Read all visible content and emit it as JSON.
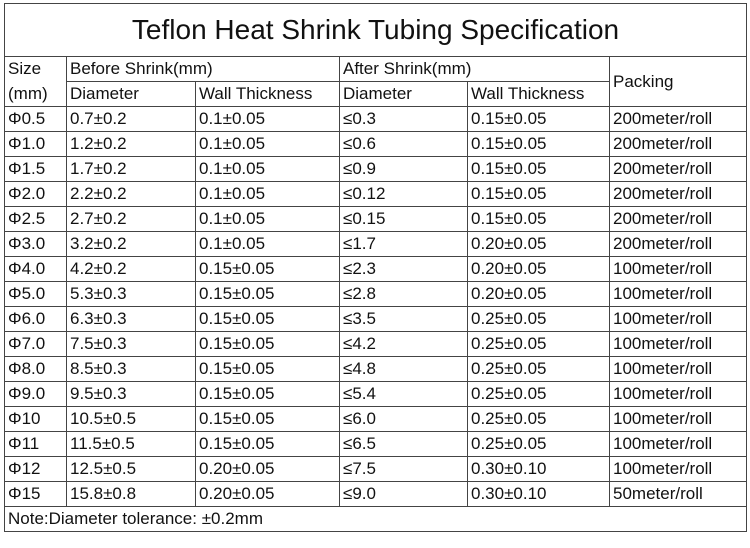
{
  "table": {
    "title": "Teflon Heat Shrink Tubing Specification",
    "header": {
      "size_line1": "Size",
      "size_line2": "(mm)",
      "before": "Before Shrink(mm)",
      "after": "After Shrink(mm)",
      "packing": "Packing",
      "sub": [
        "Diameter",
        "Wall Thickness",
        "Diameter",
        "Wall Thickness"
      ]
    },
    "rows": [
      [
        "Φ0.5",
        "0.7±0.2",
        "0.1±0.05",
        "≤0.3",
        "0.15±0.05",
        "200meter/roll"
      ],
      [
        "Φ1.0",
        "1.2±0.2",
        "0.1±0.05",
        "≤0.6",
        "0.15±0.05",
        "200meter/roll"
      ],
      [
        "Φ1.5",
        "1.7±0.2",
        "0.1±0.05",
        "≤0.9",
        "0.15±0.05",
        "200meter/roll"
      ],
      [
        "Φ2.0",
        "2.2±0.2",
        "0.1±0.05",
        "≤0.12",
        "0.15±0.05",
        "200meter/roll"
      ],
      [
        "Φ2.5",
        "2.7±0.2",
        "0.1±0.05",
        "≤0.15",
        "0.15±0.05",
        "200meter/roll"
      ],
      [
        "Φ3.0",
        "3.2±0.2",
        "0.1±0.05",
        "≤1.7",
        "0.20±0.05",
        "200meter/roll"
      ],
      [
        "Φ4.0",
        "4.2±0.2",
        "0.15±0.05",
        "≤2.3",
        "0.20±0.05",
        "100meter/roll"
      ],
      [
        "Φ5.0",
        "5.3±0.3",
        "0.15±0.05",
        "≤2.8",
        "0.20±0.05",
        "100meter/roll"
      ],
      [
        "Φ6.0",
        "6.3±0.3",
        "0.15±0.05",
        "≤3.5",
        "0.25±0.05",
        "100meter/roll"
      ],
      [
        "Φ7.0",
        "7.5±0.3",
        "0.15±0.05",
        "≤4.2",
        "0.25±0.05",
        "100meter/roll"
      ],
      [
        "Φ8.0",
        "8.5±0.3",
        "0.15±0.05",
        "≤4.8",
        "0.25±0.05",
        "100meter/roll"
      ],
      [
        "Φ9.0",
        "9.5±0.3",
        "0.15±0.05",
        "≤5.4",
        "0.25±0.05",
        "100meter/roll"
      ],
      [
        "Φ10",
        "10.5±0.5",
        "0.15±0.05",
        "≤6.0",
        "0.25±0.05",
        "100meter/roll"
      ],
      [
        "Φ11",
        "11.5±0.5",
        "0.15±0.05",
        "≤6.5",
        "0.25±0.05",
        "100meter/roll"
      ],
      [
        "Φ12",
        "12.5±0.5",
        "0.20±0.05",
        "≤7.5",
        "0.30±0.10",
        "100meter/roll"
      ],
      [
        "Φ15",
        "15.8±0.8",
        "0.20±0.05",
        "≤9.0",
        "0.30±0.10",
        "50meter/roll"
      ]
    ],
    "note": "Note:Diameter tolerance: ±0.2mm"
  }
}
